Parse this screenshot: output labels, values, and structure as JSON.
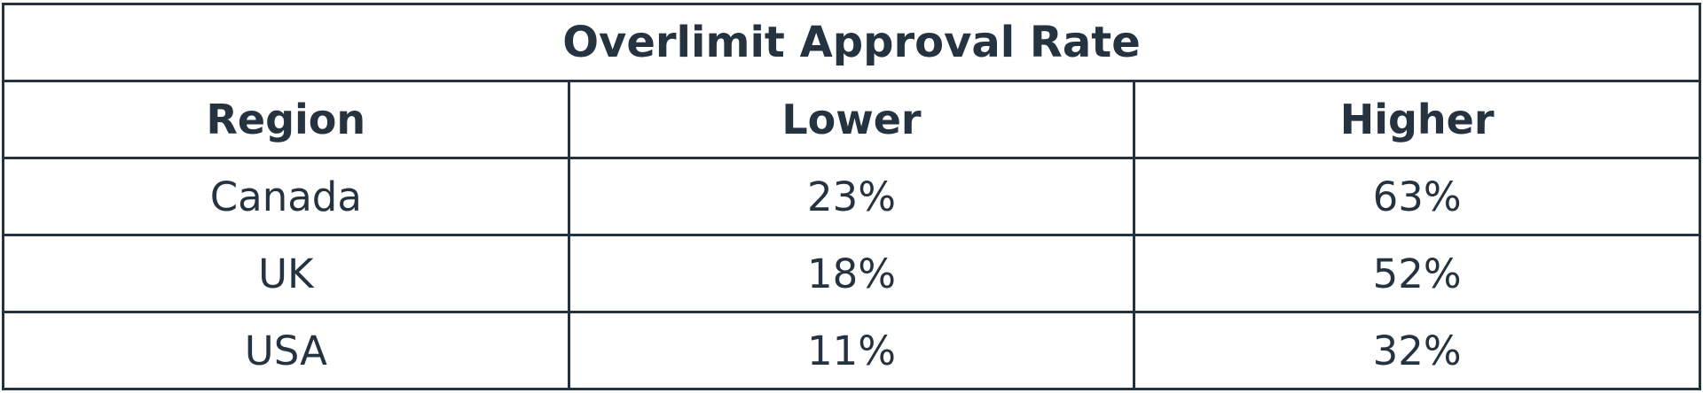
{
  "header": {
    "title": "Overlimit Approval Rate"
  },
  "table": {
    "columns": [
      "Region",
      "Lower",
      "Higher"
    ],
    "rows": [
      [
        "Canada",
        "23%",
        "63%"
      ],
      [
        "UK",
        "18%",
        "52%"
      ],
      [
        "USA",
        "11%",
        "32%"
      ]
    ]
  }
}
